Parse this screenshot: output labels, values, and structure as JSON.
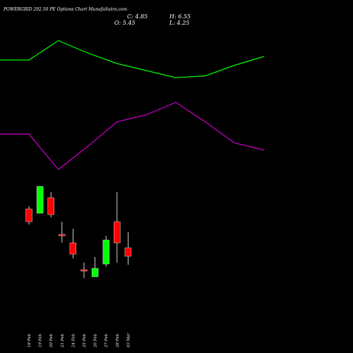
{
  "header": {
    "title": "POWERGRID 292.50  PE Options  Chart MunafaSutra.com",
    "close_text": "C: 4.85",
    "high_text": "H: 6.55",
    "open_text": "O: 5.45",
    "low_text": "L: 4.25"
  },
  "chart_data": {
    "type": "candlestick",
    "title": "POWERGRID 292.50  PE Options  Chart MunafaSutra.com",
    "categories": [
      "18 Feb",
      "19 Feb",
      "20 Feb",
      "21 Feb",
      "24 Feb",
      "25 Feb",
      "26 Feb",
      "27 Feb",
      "28 Feb",
      "03 Mar"
    ],
    "ohlc": [
      {
        "o": 8.2,
        "h": 8.4,
        "l": 7.1,
        "c": 7.3
      },
      {
        "o": 7.9,
        "h": 9.8,
        "l": 7.9,
        "c": 9.8
      },
      {
        "o": 9.0,
        "h": 9.4,
        "l": 7.6,
        "c": 7.8
      },
      {
        "o": 6.4,
        "h": 7.3,
        "l": 5.8,
        "c": 6.3
      },
      {
        "o": 5.8,
        "h": 6.8,
        "l": 4.7,
        "c": 5.0
      },
      {
        "o": 3.9,
        "h": 4.4,
        "l": 3.3,
        "c": 3.8
      },
      {
        "o": 3.4,
        "h": 4.8,
        "l": 3.4,
        "c": 4.0
      },
      {
        "o": 4.3,
        "h": 6.3,
        "l": 4.1,
        "c": 6.0
      },
      {
        "o": 7.3,
        "h": 9.4,
        "l": 4.4,
        "c": 5.8
      },
      {
        "o": 5.45,
        "h": 6.55,
        "l": 4.25,
        "c": 4.85
      }
    ],
    "price_range": [
      2.5,
      11
    ],
    "indicators": [
      {
        "color": "#00ff00",
        "values": [
          82,
          82,
          93,
          86,
          80,
          76,
          72,
          73,
          79,
          84
        ]
      },
      {
        "color": "#cc00cc",
        "values": [
          40,
          40,
          20,
          33,
          47,
          51,
          58,
          47,
          35,
          31
        ]
      }
    ],
    "indicator_range": [
      0,
      100
    ],
    "colors": {
      "up": "#00ff00",
      "down": "#ff0000",
      "wick_up": "#ffffff",
      "wick_down": "#ffffff"
    },
    "grid": false
  }
}
